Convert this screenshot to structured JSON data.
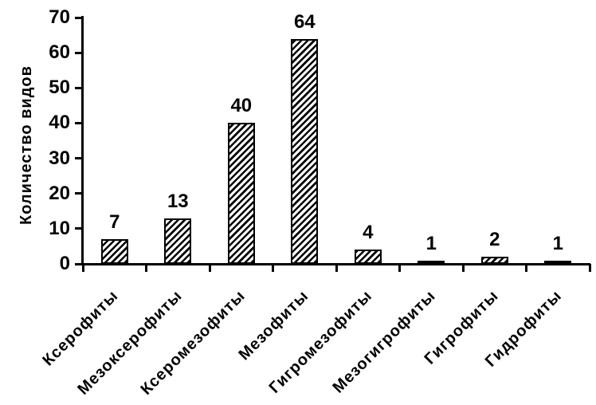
{
  "chart_data": {
    "type": "bar",
    "title": "",
    "xlabel": "",
    "ylabel": "Количество видов",
    "categories": [
      "Ксерофиты",
      "Мезоксерофиты",
      "Ксеромезофиты",
      "Мезофиты",
      "Гигромезофиты",
      "Мезогигрофиты",
      "Гигрофиты",
      "Гидрофиты"
    ],
    "values": [
      7,
      13,
      40,
      64,
      4,
      1,
      2,
      1
    ],
    "value_labels": [
      "7",
      "13",
      "40",
      "64",
      "4",
      "1",
      "2",
      "1"
    ],
    "yticks": [
      0,
      10,
      20,
      30,
      40,
      50,
      60,
      70
    ],
    "ylim": [
      0,
      70
    ],
    "grid": false,
    "legend": null,
    "bar_fill": "diagonal-hatch",
    "ink_color": "#000000",
    "background_color": "#ffffff"
  }
}
